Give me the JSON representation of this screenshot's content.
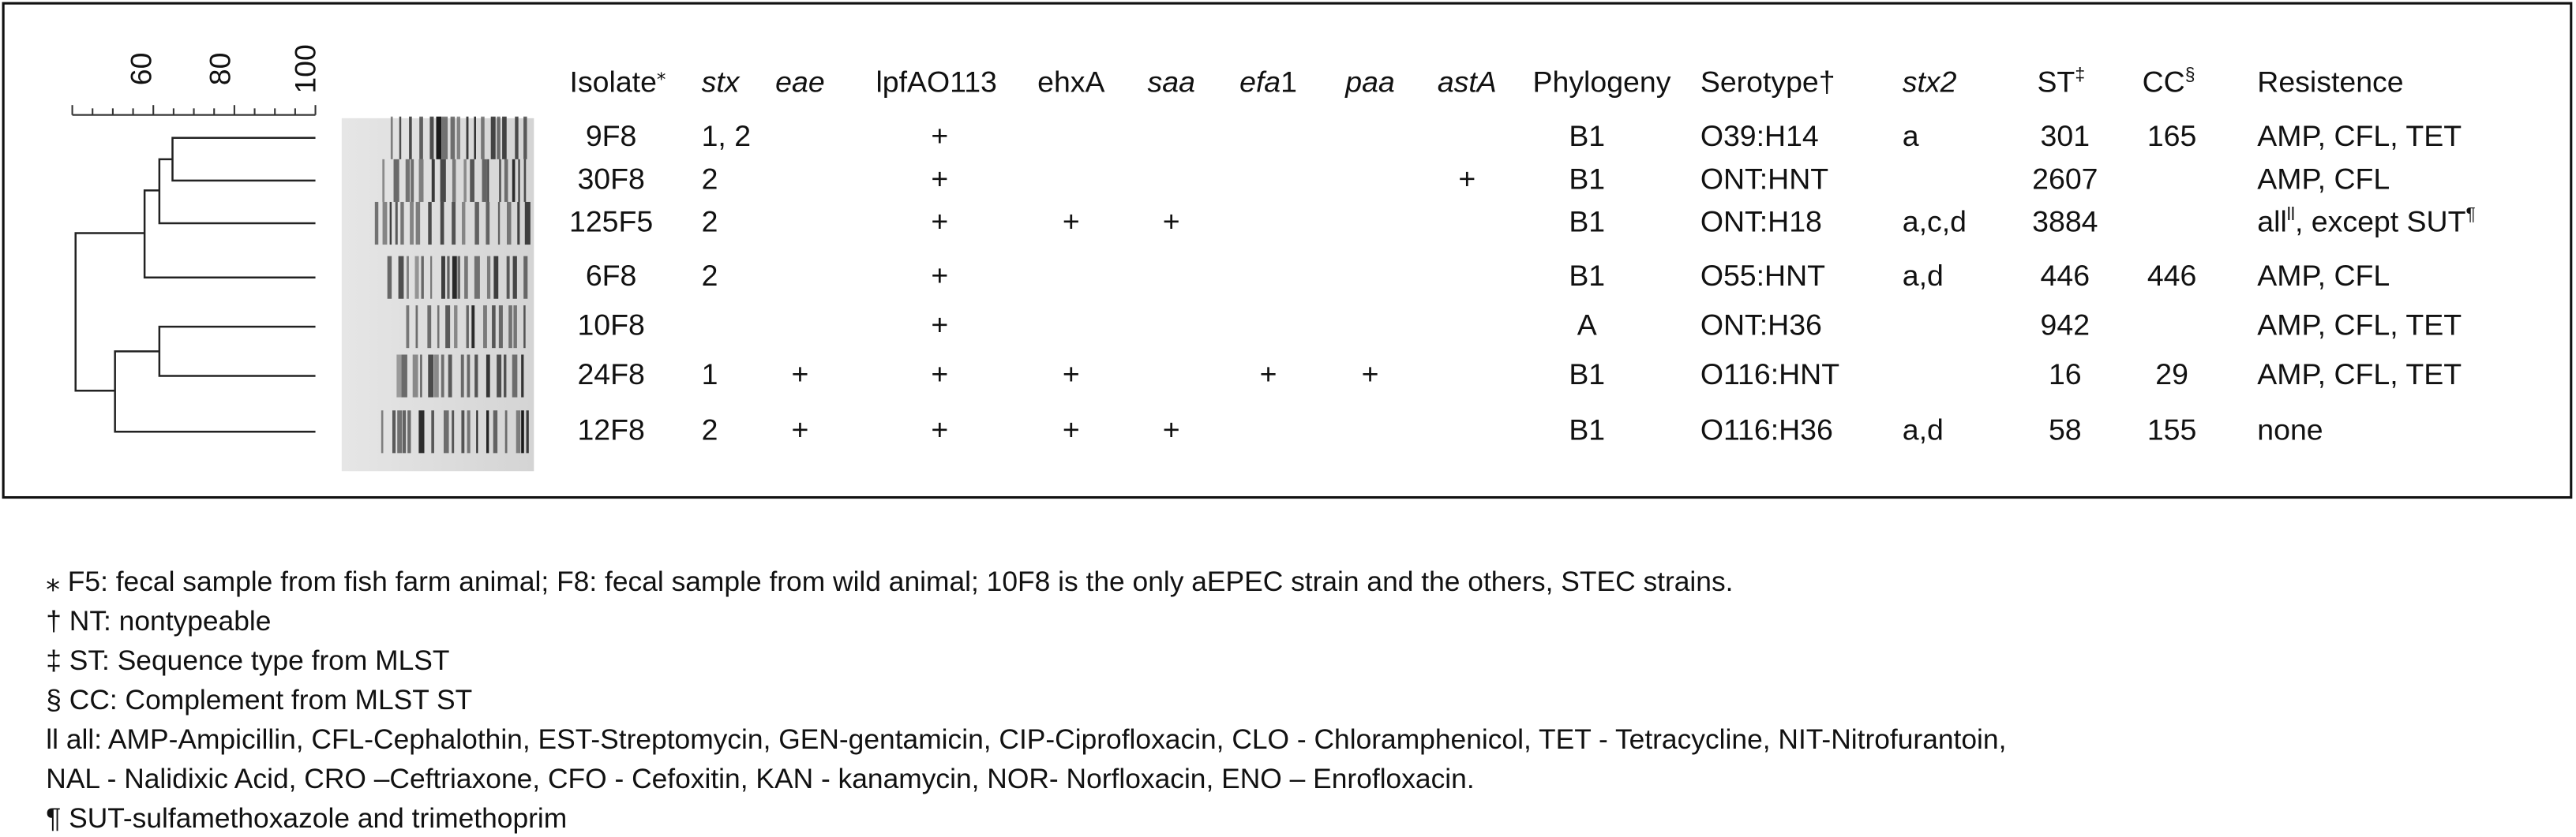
{
  "scale": {
    "labels": [
      "60",
      "80",
      "100"
    ]
  },
  "table": {
    "columns": [
      [
        {
          "text": "Isolate"
        },
        {
          "sup": "⁎"
        }
      ],
      [
        {
          "text": "stx",
          "italic": true
        }
      ],
      [
        {
          "text": "eae",
          "italic": true
        }
      ],
      [
        {
          "text": "lpfAO113"
        }
      ],
      [
        {
          "text": "ehxA"
        }
      ],
      [
        {
          "text": "saa",
          "italic": true
        }
      ],
      [
        {
          "text": "efa",
          "italic": true
        },
        {
          "text": "1"
        }
      ],
      [
        {
          "text": "paa",
          "italic": true
        }
      ],
      [
        {
          "text": "astA",
          "italic": true
        }
      ],
      [
        {
          "text": "Phylogeny"
        }
      ],
      [
        {
          "text": "Serotype†"
        }
      ],
      [
        {
          "text": "stx2",
          "italic": true
        }
      ],
      [
        {
          "text": "ST"
        },
        {
          "sup": "‡"
        }
      ],
      [
        {
          "text": "CC"
        },
        {
          "sup": "§"
        }
      ],
      [
        {
          "text": "Resistence"
        }
      ]
    ],
    "rows": [
      [
        "9F8",
        "1, 2",
        null,
        "+",
        null,
        null,
        null,
        null,
        null,
        "B1",
        "O39:H14",
        "a",
        "301",
        "165",
        "AMP, CFL, TET"
      ],
      [
        "30F8",
        "2",
        null,
        "+",
        null,
        null,
        null,
        null,
        "+",
        "B1",
        "ONT:HNT",
        null,
        "2607",
        null,
        "AMP, CFL"
      ],
      [
        "125F5",
        "2",
        null,
        "+",
        "+",
        "+",
        null,
        null,
        null,
        "B1",
        "ONT:H18",
        "a,c,d",
        "3884",
        null,
        [
          {
            "text": "all"
          },
          {
            "sup": "ll"
          },
          {
            "text": ", except SUT"
          },
          {
            "sup": "¶"
          }
        ]
      ],
      [
        "6F8",
        "2",
        null,
        "+",
        null,
        null,
        null,
        null,
        null,
        "B1",
        "O55:HNT",
        "a,d",
        "446",
        "446",
        "AMP, CFL"
      ],
      [
        "10F8",
        null,
        null,
        "+",
        null,
        null,
        null,
        null,
        null,
        "A",
        "ONT:H36",
        null,
        "942",
        null,
        "AMP, CFL, TET"
      ],
      [
        "24F8",
        "1",
        "+",
        "+",
        "+",
        null,
        "+",
        "+",
        null,
        "B1",
        "O116:HNT",
        null,
        "16",
        "29",
        "AMP, CFL, TET"
      ],
      [
        "12F8",
        "2",
        "+",
        "+",
        "+",
        "+",
        null,
        null,
        null,
        "B1",
        "O116:H36",
        "a,d",
        "58",
        "155",
        "none"
      ]
    ]
  },
  "footnotes": [
    "⁎ F5: fecal sample from fish farm animal; F8: fecal sample from wild animal; 10F8 is the only aEPEC strain and the others, STEC strains.",
    "† NT: nontypeable",
    "‡ ST: Sequence type from MLST",
    "§ CC: Complement from MLST ST",
    "ll all: AMP-Ampicillin, CFL-Cephalothin, EST-Streptomycin, GEN-gentamicin, CIP-Ciprofloxacin, CLO - Chloramphenicol, TET - Tetracycline, NIT-Nitrofurantoin,",
    "NAL - Nalidixic Acid, CRO –Ceftriaxone, CFO - Cefoxitin, KAN - kanamycin, NOR- Norfloxacin, ENO – Enrofloxacin.",
    "¶ SUT-sulfamethoxazole and trimethoprim"
  ]
}
